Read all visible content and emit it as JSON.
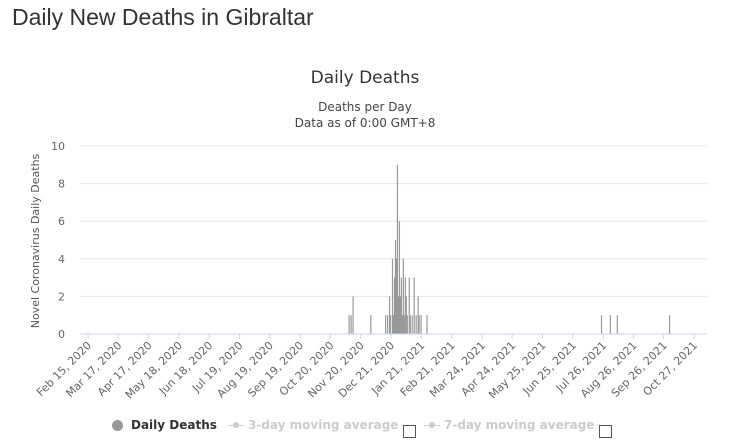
{
  "page": {
    "title": "Daily New Deaths in Gibraltar"
  },
  "chart_data": {
    "type": "bar",
    "title": "Daily Deaths",
    "subtitle_line1": "Deaths per Day",
    "subtitle_line2": "Data as of 0:00 GMT+8",
    "ylabel": "Novel Coronavirus Daily Deaths",
    "xlabel": "",
    "ylim": [
      0,
      10
    ],
    "yticks": [
      0,
      2,
      4,
      6,
      8,
      10
    ],
    "grid": true,
    "legend_position": "bottom",
    "bar_color": "#999999",
    "x_range": [
      "2020-02-15",
      "2021-11-12"
    ],
    "tick_labels": [
      "Feb 15, 2020",
      "Mar 17, 2020",
      "Apr 17, 2020",
      "May 18, 2020",
      "Jun 18, 2020",
      "Jul 19, 2020",
      "Aug 19, 2020",
      "Sep 19, 2020",
      "Oct 20, 2020",
      "Nov 20, 2020",
      "Dec 21, 2020",
      "Jan 21, 2021",
      "Feb 21, 2021",
      "Mar 24, 2021",
      "Apr 24, 2021",
      "May 25, 2021",
      "Jun 25, 2021",
      "Jul 26, 2021",
      "Aug 26, 2021",
      "Sep 26, 2021",
      "Oct 27, 2021"
    ],
    "series": [
      {
        "name": "Daily Deaths",
        "points": [
          [
            "2020-11-14",
            1
          ],
          [
            "2020-11-16",
            1
          ],
          [
            "2020-11-18",
            2
          ],
          [
            "2020-12-06",
            1
          ],
          [
            "2020-12-21",
            1
          ],
          [
            "2020-12-23",
            1
          ],
          [
            "2020-12-25",
            2
          ],
          [
            "2020-12-26",
            1
          ],
          [
            "2020-12-28",
            4
          ],
          [
            "2020-12-29",
            1
          ],
          [
            "2020-12-30",
            3
          ],
          [
            "2020-12-31",
            5
          ],
          [
            "2021-01-01",
            4
          ],
          [
            "2021-01-02",
            9
          ],
          [
            "2021-01-03",
            2
          ],
          [
            "2021-01-04",
            6
          ],
          [
            "2021-01-05",
            2
          ],
          [
            "2021-01-06",
            3
          ],
          [
            "2021-01-07",
            1
          ],
          [
            "2021-01-08",
            4
          ],
          [
            "2021-01-09",
            1
          ],
          [
            "2021-01-10",
            3
          ],
          [
            "2021-01-11",
            2
          ],
          [
            "2021-01-12",
            1
          ],
          [
            "2021-01-14",
            3
          ],
          [
            "2021-01-15",
            1
          ],
          [
            "2021-01-17",
            1
          ],
          [
            "2021-01-19",
            3
          ],
          [
            "2021-01-21",
            1
          ],
          [
            "2021-01-23",
            2
          ],
          [
            "2021-01-24",
            1
          ],
          [
            "2021-01-26",
            1
          ],
          [
            "2021-02-01",
            1
          ],
          [
            "2021-07-28",
            1
          ],
          [
            "2021-08-06",
            1
          ],
          [
            "2021-08-13",
            1
          ],
          [
            "2021-10-05",
            1
          ]
        ]
      }
    ],
    "legend": [
      {
        "label": "Daily Deaths",
        "active": true
      },
      {
        "label": "3-day moving average",
        "active": false
      },
      {
        "label": "7-day moving average",
        "active": false
      }
    ]
  },
  "colors": {
    "title": "#333333",
    "grid": "#e6e6e6",
    "axis_line": "#ccd6eb",
    "bar": "#999999",
    "legend_inactive": "#cccccc"
  }
}
